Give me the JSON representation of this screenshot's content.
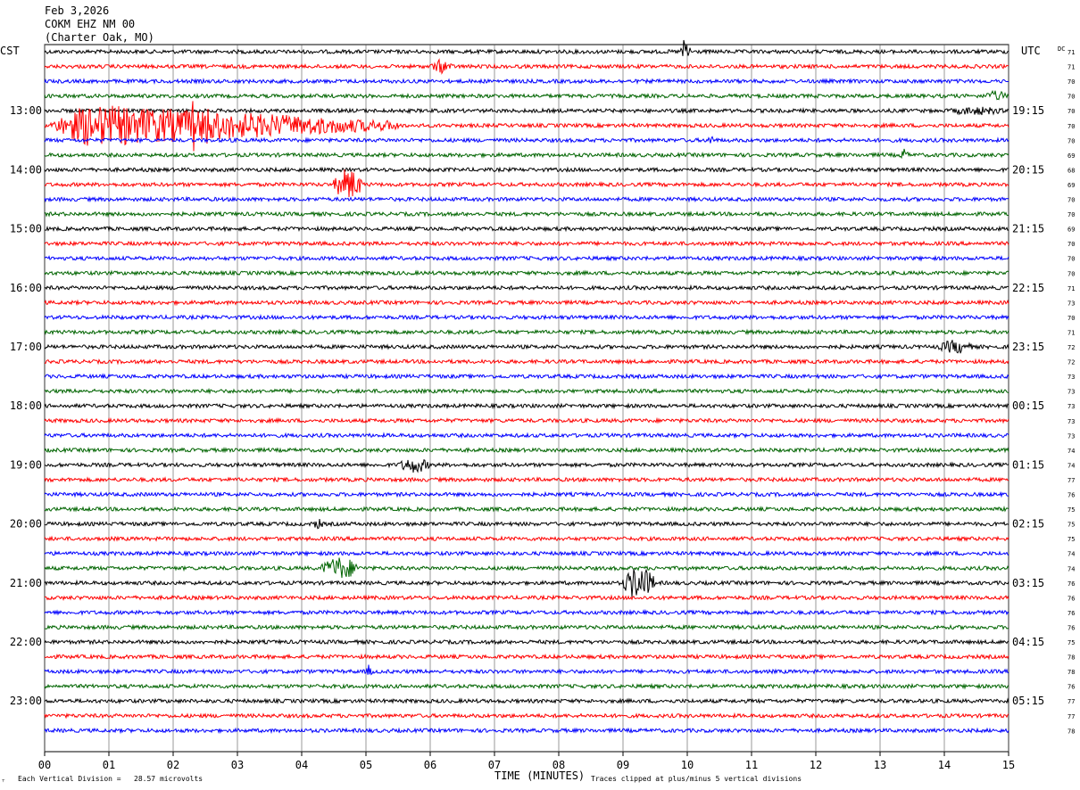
{
  "header": {
    "date": "Feb 3,2026",
    "station": "COKM EHZ NM 00",
    "location": "(Charter Oak, MO)"
  },
  "chart_data": {
    "type": "line",
    "title": "",
    "left_axis_label": "CST",
    "right_axis_label": "UTC",
    "dc_label": "DC",
    "xlabel": "TIME (MINUTES)",
    "xlim": [
      0,
      15
    ],
    "x_ticks": [
      "00",
      "01",
      "02",
      "03",
      "04",
      "05",
      "06",
      "07",
      "08",
      "09",
      "10",
      "11",
      "12",
      "13",
      "14",
      "15"
    ],
    "trace_colors": [
      "#000000",
      "#ff0000",
      "#0000ff",
      "#006400"
    ],
    "left_time_labels": [
      {
        "trace": 4,
        "label": "13:00"
      },
      {
        "trace": 8,
        "label": "14:00"
      },
      {
        "trace": 12,
        "label": "15:00"
      },
      {
        "trace": 16,
        "label": "16:00"
      },
      {
        "trace": 20,
        "label": "17:00"
      },
      {
        "trace": 24,
        "label": "18:00"
      },
      {
        "trace": 28,
        "label": "19:00"
      },
      {
        "trace": 32,
        "label": "20:00"
      },
      {
        "trace": 36,
        "label": "21:00"
      },
      {
        "trace": 40,
        "label": "22:00"
      },
      {
        "trace": 44,
        "label": "23:00"
      }
    ],
    "right_time_labels": [
      {
        "trace": 4,
        "label": "19:15"
      },
      {
        "trace": 8,
        "label": "20:15"
      },
      {
        "trace": 12,
        "label": "21:15"
      },
      {
        "trace": 16,
        "label": "22:15"
      },
      {
        "trace": 20,
        "label": "23:15"
      },
      {
        "trace": 24,
        "label": "00:15"
      },
      {
        "trace": 28,
        "label": "01:15"
      },
      {
        "trace": 32,
        "label": "02:15"
      },
      {
        "trace": 36,
        "label": "03:15"
      },
      {
        "trace": 40,
        "label": "04:15"
      },
      {
        "trace": 44,
        "label": "05:15"
      }
    ],
    "dc_offsets": [
      "71",
      "71",
      "70",
      "70",
      "70",
      "70",
      "70",
      "69",
      "68",
      "69",
      "70",
      "70",
      "69",
      "70",
      "70",
      "70",
      "71",
      "73",
      "70",
      "71",
      "72",
      "72",
      "73",
      "73",
      "73",
      "73",
      "73",
      "74",
      "74",
      "77",
      "76",
      "75",
      "75",
      "75",
      "74",
      "74",
      "76",
      "76",
      "76",
      "76",
      "75",
      "78",
      "78",
      "76",
      "77",
      "77",
      "78"
    ],
    "events": [
      {
        "trace": 0,
        "start_min": 9.9,
        "end_min": 10.05,
        "amplitude": 1.6,
        "type": "spike"
      },
      {
        "trace": 1,
        "start_min": 6.0,
        "end_min": 6.35,
        "amplitude": 0.8,
        "type": "burst"
      },
      {
        "trace": 3,
        "start_min": 14.6,
        "end_min": 15.0,
        "amplitude": 0.6,
        "type": "burst"
      },
      {
        "trace": 4,
        "start_min": 14.0,
        "end_min": 15.0,
        "amplitude": 0.5,
        "type": "burst"
      },
      {
        "trace": 5,
        "start_min": 0.0,
        "end_min": 5.5,
        "amplitude": 2.4,
        "type": "quake"
      },
      {
        "trace": 5,
        "start_min": 2.48,
        "end_min": 2.55,
        "amplitude": 5.0,
        "type": "spike"
      },
      {
        "trace": 5,
        "start_min": 2.28,
        "end_min": 2.34,
        "amplitude": 3.5,
        "type": "spike"
      },
      {
        "trace": 6,
        "start_min": 10.3,
        "end_min": 10.45,
        "amplitude": 0.6,
        "type": "burst"
      },
      {
        "trace": 7,
        "start_min": 13.3,
        "end_min": 13.45,
        "amplitude": 0.7,
        "type": "burst"
      },
      {
        "trace": 9,
        "start_min": 4.5,
        "end_min": 4.95,
        "amplitude": 1.8,
        "type": "burst"
      },
      {
        "trace": 20,
        "start_min": 13.9,
        "end_min": 14.45,
        "amplitude": 0.8,
        "type": "burst"
      },
      {
        "trace": 28,
        "start_min": 5.5,
        "end_min": 6.0,
        "amplitude": 0.9,
        "type": "burst"
      },
      {
        "trace": 32,
        "start_min": 4.15,
        "end_min": 4.35,
        "amplitude": 0.6,
        "type": "burst"
      },
      {
        "trace": 35,
        "start_min": 4.3,
        "end_min": 4.9,
        "amplitude": 1.3,
        "type": "burst"
      },
      {
        "trace": 36,
        "start_min": 9.0,
        "end_min": 9.5,
        "amplitude": 1.9,
        "type": "burst"
      },
      {
        "trace": 42,
        "start_min": 5.0,
        "end_min": 5.1,
        "amplitude": 0.8,
        "type": "spike"
      }
    ]
  },
  "footer": {
    "scale_note": "Each Vertical Division =   28.57 microvolts",
    "clip_note": "Traces clipped at plus/minus 5 vertical divisions",
    "marker": "⸆"
  }
}
